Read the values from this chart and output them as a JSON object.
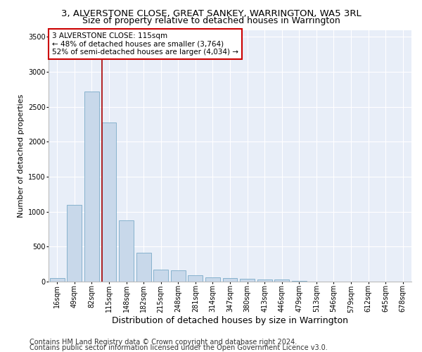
{
  "title": "3, ALVERSTONE CLOSE, GREAT SANKEY, WARRINGTON, WA5 3RL",
  "subtitle": "Size of property relative to detached houses in Warrington",
  "xlabel": "Distribution of detached houses by size in Warrington",
  "ylabel": "Number of detached properties",
  "bar_color": "#c8d8ea",
  "bar_edge_color": "#7aaac8",
  "background_color": "#e8eef8",
  "grid_color": "#ffffff",
  "categories": [
    "16sqm",
    "49sqm",
    "82sqm",
    "115sqm",
    "148sqm",
    "182sqm",
    "215sqm",
    "248sqm",
    "281sqm",
    "314sqm",
    "347sqm",
    "380sqm",
    "413sqm",
    "446sqm",
    "479sqm",
    "513sqm",
    "546sqm",
    "579sqm",
    "612sqm",
    "645sqm",
    "678sqm"
  ],
  "values": [
    50,
    1100,
    2720,
    2280,
    880,
    415,
    170,
    160,
    95,
    60,
    55,
    40,
    30,
    30,
    10,
    5,
    5,
    0,
    0,
    0,
    0
  ],
  "ylim": [
    0,
    3600
  ],
  "yticks": [
    0,
    500,
    1000,
    1500,
    2000,
    2500,
    3000,
    3500
  ],
  "annotation_line1": "3 ALVERSTONE CLOSE: 115sqm",
  "annotation_line2": "← 48% of detached houses are smaller (3,764)",
  "annotation_line3": "52% of semi-detached houses are larger (4,034) →",
  "footer1": "Contains HM Land Registry data © Crown copyright and database right 2024.",
  "footer2": "Contains public sector information licensed under the Open Government Licence v3.0.",
  "annotation_box_color": "#cc0000",
  "vline_color": "#aa0000",
  "title_fontsize": 9.5,
  "subtitle_fontsize": 9,
  "xlabel_fontsize": 9,
  "ylabel_fontsize": 8,
  "tick_fontsize": 7,
  "footer_fontsize": 7
}
